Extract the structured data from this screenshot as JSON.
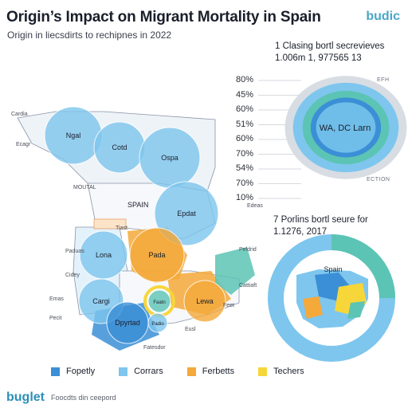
{
  "title": "Origin’s Impact on Migrant Mortality in Spain",
  "subtitle": "Origin in liecsdirts to rechipnes in 2022",
  "brand_top": "budic",
  "brand_bottom": "buglet",
  "footer_note": "Foocdts din ceepord",
  "colors": {
    "dark_blue": "#3b8fd6",
    "light_blue": "#7ec6ee",
    "orange": "#f4a93a",
    "yellow": "#f7d63a",
    "teal": "#5cc4b4"
  },
  "map": {
    "bubbles": [
      "Ngal",
      "Cotd",
      "Ospa",
      "Epdat",
      "Lona",
      "Pada",
      "Cargi",
      "Faatn",
      "Dpyrtad",
      "Lewa",
      "Padio"
    ],
    "country_label": "SPAIN",
    "other_labels": [
      "Cardia",
      "Ecagr",
      "MOUTAL",
      "Edeas",
      "Paduas",
      "Cidey",
      "Peldrid",
      "Feet",
      "Emas",
      "Pecit",
      "Eusl",
      "Cattiaft",
      "Fatesdor",
      "Tiast"
    ]
  },
  "chart_data": [
    {
      "type": "pie",
      "title": "1 Clasing bortl secrevieves",
      "subtitle": "1.006m 1, 977565 13",
      "center_label": "WA, DC Larn",
      "ticks": [
        "80%",
        "45%",
        "60%",
        "51%",
        "60%",
        "70%",
        "54%",
        "70%",
        "10%"
      ],
      "side_labels": [
        "EFH",
        "ECTION"
      ]
    },
    {
      "type": "pie",
      "title": "7 Porlins bortl seure for",
      "subtitle": "1.1276, 2017",
      "center_label": "Spain"
    }
  ],
  "legend": [
    {
      "label": "Fopetly",
      "color": "#3b8fd6"
    },
    {
      "label": "Corrars",
      "color": "#7ec6ee"
    },
    {
      "label": "Ferbetts",
      "color": "#f4a93a"
    },
    {
      "label": "Techers",
      "color": "#f7d63a"
    }
  ]
}
